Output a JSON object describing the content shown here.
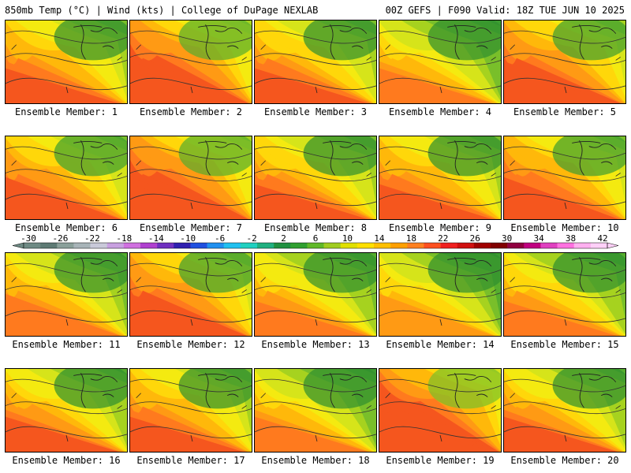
{
  "header": {
    "left": "850mb Temp (°C) | Wind (kts) | College of DuPage NEXLAB",
    "right": "00Z GEFS | F090 Valid: 18Z TUE JUN 10 2025"
  },
  "panels": [
    {
      "label": "Ensemble Member: 1",
      "warmth": 0.42
    },
    {
      "label": "Ensemble Member: 2",
      "warmth": 0.55
    },
    {
      "label": "Ensemble Member: 3",
      "warmth": 0.4
    },
    {
      "label": "Ensemble Member: 4",
      "warmth": 0.3
    },
    {
      "label": "Ensemble Member: 5",
      "warmth": 0.5
    },
    {
      "label": "Ensemble Member: 6",
      "warmth": 0.45
    },
    {
      "label": "Ensemble Member: 7",
      "warmth": 0.55
    },
    {
      "label": "Ensemble Member: 8",
      "warmth": 0.4
    },
    {
      "label": "Ensemble Member: 9",
      "warmth": 0.42
    },
    {
      "label": "Ensemble Member: 10",
      "warmth": 0.48
    },
    {
      "label": "Ensemble Member: 11",
      "warmth": 0.35
    },
    {
      "label": "Ensemble Member: 12",
      "warmth": 0.5
    },
    {
      "label": "Ensemble Member: 13",
      "warmth": 0.32
    },
    {
      "label": "Ensemble Member: 14",
      "warmth": 0.28
    },
    {
      "label": "Ensemble Member: 15",
      "warmth": 0.33
    },
    {
      "label": "Ensemble Member: 16",
      "warmth": 0.38
    },
    {
      "label": "Ensemble Member: 17",
      "warmth": 0.42
    },
    {
      "label": "Ensemble Member: 18",
      "warmth": 0.3
    },
    {
      "label": "Ensemble Member: 19",
      "warmth": 0.6
    },
    {
      "label": "Ensemble Member: 20",
      "warmth": 0.38
    }
  ],
  "colorbar": {
    "labels": [
      "-30",
      "-26",
      "-22",
      "-18",
      "-14",
      "-10",
      "-6",
      "-2",
      "2",
      "6",
      "10",
      "14",
      "18",
      "22",
      "26",
      "30",
      "34",
      "38",
      "42"
    ],
    "colors": [
      "#6e8a84",
      "#5e7a74",
      "#8aa09a",
      "#a8b4b8",
      "#c9c9d9",
      "#c8a0e0",
      "#d070e0",
      "#b040d0",
      "#7030c0",
      "#3020b0",
      "#2050e0",
      "#2090f0",
      "#20c0f0",
      "#20d0c0",
      "#20b080",
      "#209040",
      "#30a030",
      "#60b828",
      "#a0cc20",
      "#e0e000",
      "#ffe000",
      "#ffc000",
      "#ffa000",
      "#ff8020",
      "#ff5020",
      "#f02020",
      "#d01010",
      "#a00000",
      "#800000",
      "#900040",
      "#c00080",
      "#e040c0",
      "#ff70e0",
      "#ffb0f0",
      "#ffd0f8"
    ]
  }
}
